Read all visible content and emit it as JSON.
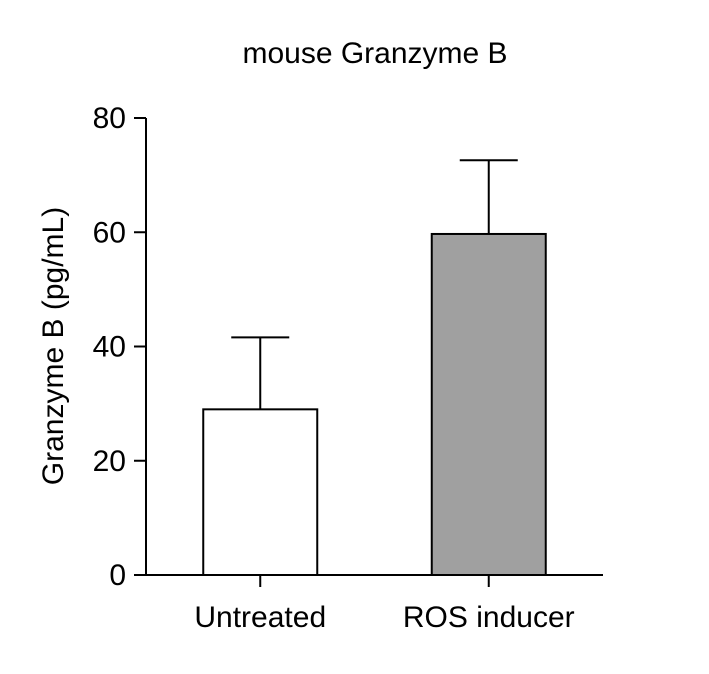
{
  "chart_data": {
    "type": "bar",
    "title": "mouse Granzyme B",
    "xlabel": "",
    "ylabel": "Granzyme B (pg/mL)",
    "ylim": [
      0,
      80
    ],
    "yticks": [
      "0",
      "20",
      "40",
      "60",
      "80"
    ],
    "categories": [
      "Untreated",
      "ROS inducer"
    ],
    "values": [
      29,
      59.7
    ],
    "error_upper": [
      12.6,
      12.9
    ],
    "bar_colors": [
      "#ffffff",
      "#a0a0a0"
    ],
    "grid": false
  }
}
